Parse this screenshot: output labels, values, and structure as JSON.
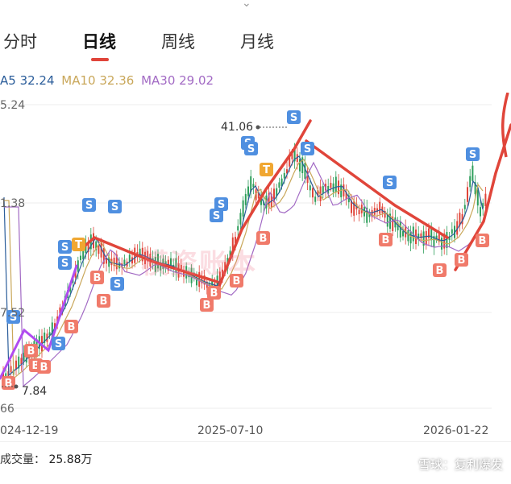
{
  "tabs": [
    {
      "label": "分时",
      "active": false
    },
    {
      "label": "日线",
      "active": true
    },
    {
      "label": "周线",
      "active": false
    },
    {
      "label": "月线",
      "active": false
    }
  ],
  "ma": {
    "ma5": "A5 32.24",
    "ma10": "MA10 32.36",
    "ma30": "MA30 29.02"
  },
  "y_axis": {
    "top": "5.24",
    "mid": "1.38",
    "low": "7.52",
    "bottom": "66"
  },
  "annotations": {
    "high": "41.06",
    "low": "7.84"
  },
  "x_axis": {
    "left": "024-12-19",
    "mid": "2025-07-10",
    "right": "2026-01-22"
  },
  "volume": {
    "label": "成交量：",
    "value": "25.88万"
  },
  "watermark": {
    "main": "模资账本",
    "corner": "雪球：复利爆发"
  },
  "colors": {
    "up": "#e0453a",
    "down": "#2e9e5b",
    "buy_marker": "#f07a6a",
    "sell_marker": "#4f8fe0",
    "trend_red": "#e0453a",
    "trend_purple": "#b04cf0"
  },
  "markers": {
    "sell": "S",
    "buy": "B",
    "t": "T"
  }
}
